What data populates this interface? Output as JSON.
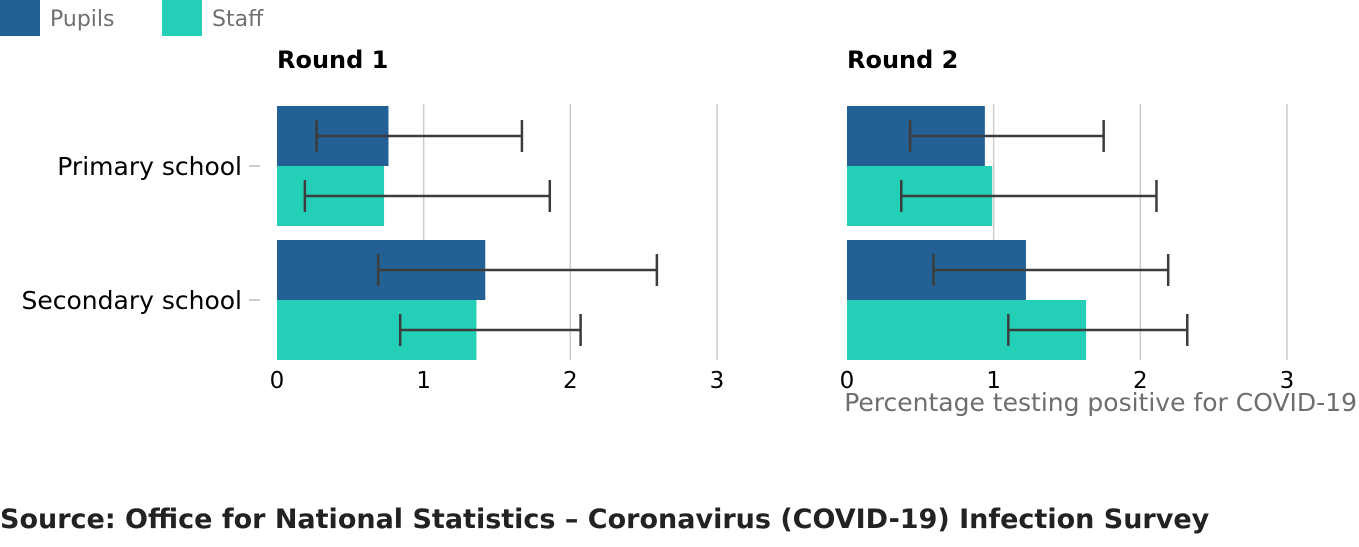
{
  "chart_data": [
    {
      "type": "bar",
      "orientation": "horizontal",
      "title": "Round 1",
      "categories": [
        "Primary school",
        "Secondary school"
      ],
      "series": [
        {
          "name": "Pupils",
          "values": [
            0.76,
            1.42
          ],
          "ci_low": [
            0.27,
            0.69
          ],
          "ci_high": [
            1.67,
            2.59
          ]
        },
        {
          "name": "Staff",
          "values": [
            0.73,
            1.36
          ],
          "ci_low": [
            0.19,
            0.84
          ],
          "ci_high": [
            1.86,
            2.07
          ]
        }
      ],
      "xlim": [
        0,
        3
      ],
      "xticks": [
        0,
        1,
        2,
        3
      ],
      "grid": true
    },
    {
      "type": "bar",
      "orientation": "horizontal",
      "title": "Round 2",
      "categories": [
        "Primary school",
        "Secondary school"
      ],
      "series": [
        {
          "name": "Pupils",
          "values": [
            0.94,
            1.22
          ],
          "ci_low": [
            0.43,
            0.59
          ],
          "ci_high": [
            1.75,
            2.19
          ]
        },
        {
          "name": "Staff",
          "values": [
            0.99,
            1.63
          ],
          "ci_low": [
            0.37,
            1.1
          ],
          "ci_high": [
            2.11,
            2.32
          ]
        }
      ],
      "xlim": [
        0,
        3
      ],
      "xticks": [
        0,
        1,
        2,
        3
      ],
      "xlabel": "Percentage testing positive for COVID-19",
      "grid": true
    }
  ],
  "legend": {
    "placement": "top-left",
    "items": [
      {
        "label": "Pupils",
        "color": "#236094"
      },
      {
        "label": "Staff",
        "color": "#23cfb6"
      }
    ]
  },
  "source": "Source: Office for National Statistics – Coronavirus (COVID-19) Infection Survey"
}
